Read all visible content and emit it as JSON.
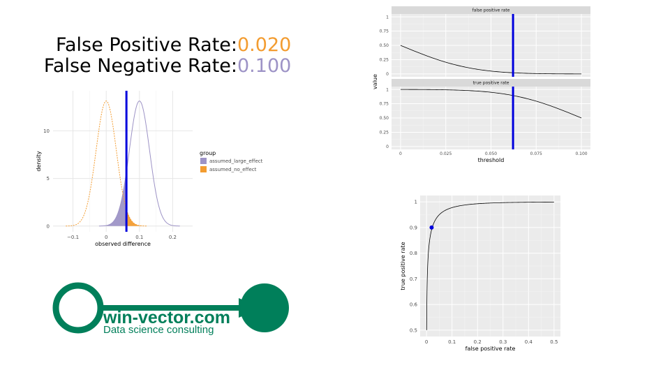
{
  "rates": {
    "fpr_label": "False Positive Rate:",
    "fpr_value": "0.020",
    "fnr_label": "False Negative Rate:",
    "fnr_value": "0.100",
    "fpr_color": "#F39C30",
    "fnr_color": "#9D93C6"
  },
  "logo": {
    "title": "win-vector.com",
    "subtitle": "Data science consulting",
    "color": "#007F5A"
  },
  "chart_data": [
    {
      "type": "area",
      "id": "density",
      "xlabel": "observed difference",
      "ylabel": "density",
      "xlim": [
        -0.16,
        0.26
      ],
      "ylim": [
        -0.6,
        14.2
      ],
      "x_ticks": [
        -0.1,
        0,
        0.1,
        0.2
      ],
      "x_tick_labels": [
        "−0.1",
        "0",
        "0.1",
        "0.2"
      ],
      "y_ticks": [
        0,
        5,
        10
      ],
      "y_tick_labels": [
        "0",
        "5",
        "10"
      ],
      "threshold": 0.0608,
      "threshold_color": "#0000DD",
      "legend": {
        "title": "group",
        "placement": "right"
      },
      "series": [
        {
          "name": "assumed_large_effect",
          "mean": 0.1,
          "sd": 0.0304,
          "color": "#9D93C6"
        },
        {
          "name": "assumed_no_effect",
          "mean": 0.0,
          "sd": 0.0304,
          "color": "#F39C30"
        }
      ]
    },
    {
      "type": "line",
      "id": "facets",
      "xlabel": "threshold",
      "ylabel": "value",
      "xlim": [
        -0.005,
        0.105
      ],
      "x_ticks": [
        0,
        0.025,
        0.05,
        0.075,
        0.1
      ],
      "x_tick_labels": [
        "0",
        "0.025",
        "0.050",
        "0.075",
        "0.100"
      ],
      "y_ticks": [
        0,
        0.25,
        0.5,
        0.75,
        1
      ],
      "y_tick_labels": [
        "0",
        "0.25",
        "0.50",
        "0.75",
        "1"
      ],
      "threshold": 0.0622,
      "threshold_color": "#0000DD",
      "panels": [
        {
          "strip": "false positive rate",
          "ylim": [
            -0.05,
            1.05
          ]
        },
        {
          "strip": "true positive rate",
          "ylim": [
            -0.05,
            1.05
          ]
        }
      ]
    },
    {
      "type": "line",
      "id": "roc",
      "xlabel": "false positive rate",
      "ylabel": "true positive rate",
      "xlim": [
        -0.025,
        0.525
      ],
      "ylim": [
        0.475,
        1.025
      ],
      "x_ticks": [
        0,
        0.1,
        0.2,
        0.3,
        0.4,
        0.5
      ],
      "x_tick_labels": [
        "0",
        "0.1",
        "0.2",
        "0.3",
        "0.4",
        "0.5"
      ],
      "y_ticks": [
        0.5,
        0.6,
        0.7,
        0.8,
        0.9,
        1
      ],
      "y_tick_labels": [
        "0.5",
        "0.6",
        "0.7",
        "0.8",
        "0.9",
        "1"
      ],
      "point": {
        "x": 0.02,
        "y": 0.9
      },
      "point_color": "#0000DD"
    }
  ]
}
